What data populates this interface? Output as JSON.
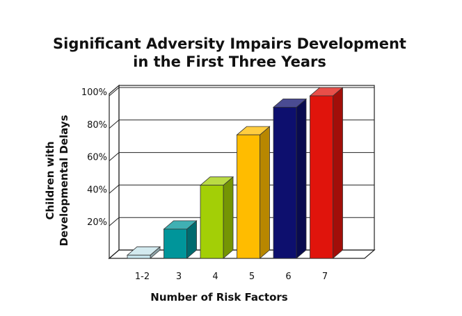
{
  "chart_data": {
    "type": "bar",
    "title_lines": [
      "Significant Adversity Impairs Development",
      "in the First Three Years"
    ],
    "xlabel": "Number of Risk Factors",
    "ylabel_lines": [
      "Children with",
      "Developmental Delays"
    ],
    "categories": [
      "1-2",
      "3",
      "4",
      "5",
      "6",
      "7"
    ],
    "values": [
      2,
      18,
      45,
      76,
      93,
      100
    ],
    "colors": [
      "#c4e3ea",
      "#00959a",
      "#a3cf06",
      "#ffbc00",
      "#0d0f6e",
      "#e0140c"
    ],
    "yticks": [
      20,
      40,
      60,
      80,
      100
    ],
    "ytick_labels": [
      "20%",
      "40%",
      "60%",
      "80%",
      "100%"
    ],
    "ylim": [
      0,
      100
    ],
    "grid": true,
    "legend": "none"
  }
}
